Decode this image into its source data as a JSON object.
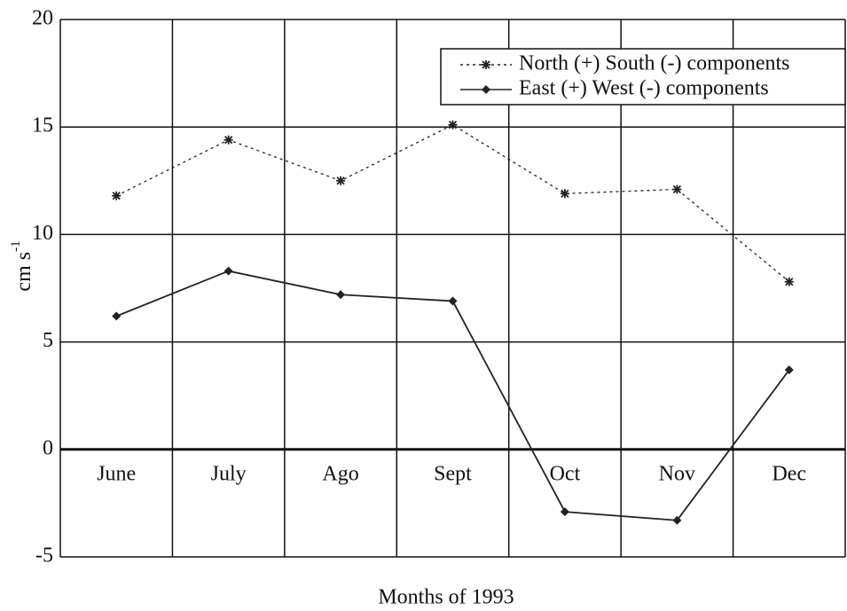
{
  "chart_data": {
    "type": "line",
    "xlabel": "Months of 1993",
    "ylabel": "cm s",
    "ylabel_superscript": "-1",
    "categories": [
      "June",
      "July",
      "Ago",
      "Sept",
      "Oct",
      "Nov",
      "Dec"
    ],
    "series": [
      {
        "name": "North (+) South (-) components",
        "color": "#222222",
        "style": "dotted",
        "marker": "asterisk",
        "values": [
          11.8,
          14.4,
          12.5,
          15.1,
          11.9,
          12.1,
          7.8
        ]
      },
      {
        "name": "East (+) West (-) components",
        "color": "#222222",
        "style": "solid",
        "marker": "diamond",
        "values": [
          6.2,
          8.3,
          7.2,
          6.9,
          -2.9,
          -3.3,
          3.7
        ]
      }
    ],
    "ylim": [
      -5,
      20
    ],
    "yticks": [
      -5,
      0,
      5,
      10,
      15,
      20
    ],
    "grid": true,
    "legend": "upper right"
  }
}
